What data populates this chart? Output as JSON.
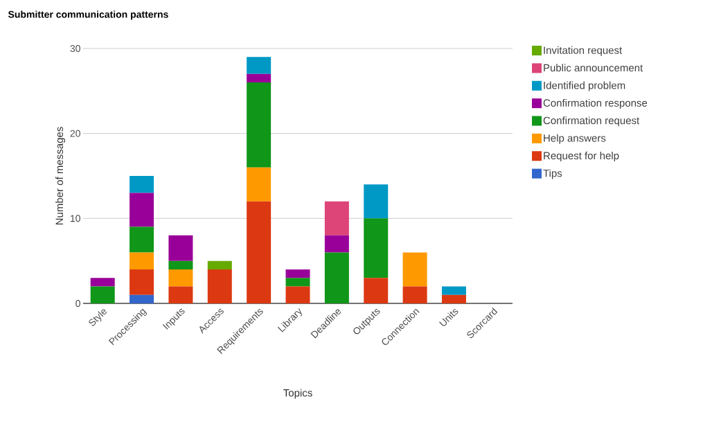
{
  "chart_data": {
    "type": "bar",
    "title": "Submitter communication patterns",
    "xlabel": "Topics",
    "ylabel": "Number of messages",
    "categories": [
      "Style",
      "Processing",
      "Inputs",
      "Access",
      "Requirements",
      "Library",
      "Deadline",
      "Outputs",
      "Connection",
      "Units",
      "Scorcard"
    ],
    "stacked": true,
    "ylim": [
      0,
      30
    ],
    "yticks": [
      0,
      10,
      20,
      30
    ],
    "grid": "y",
    "legend": "right",
    "series": [
      {
        "name": "Tips",
        "color": "#3366cc",
        "values": [
          0,
          1,
          0,
          0,
          0,
          0,
          0,
          0,
          0,
          0,
          0
        ]
      },
      {
        "name": "Request for help",
        "color": "#dc3912",
        "values": [
          0,
          3,
          2,
          4,
          12,
          2,
          0,
          3,
          2,
          1,
          0
        ]
      },
      {
        "name": "Help answers",
        "color": "#ff9900",
        "values": [
          0,
          2,
          2,
          0,
          4,
          0,
          0,
          0,
          4,
          0,
          0
        ]
      },
      {
        "name": "Confirmation request",
        "color": "#109618",
        "values": [
          2,
          3,
          1,
          0,
          10,
          1,
          6,
          7,
          0,
          0,
          0
        ]
      },
      {
        "name": "Confirmation response",
        "color": "#990099",
        "values": [
          1,
          4,
          3,
          0,
          1,
          1,
          2,
          0,
          0,
          0,
          0
        ]
      },
      {
        "name": "Identified problem",
        "color": "#0099c6",
        "values": [
          0,
          2,
          0,
          0,
          2,
          0,
          0,
          4,
          0,
          1,
          0
        ]
      },
      {
        "name": "Public announcement",
        "color": "#dd4477",
        "values": [
          0,
          0,
          0,
          0,
          0,
          0,
          4,
          0,
          0,
          0,
          0
        ]
      },
      {
        "name": "Invitation request",
        "color": "#66aa00",
        "values": [
          0,
          0,
          0,
          1,
          0,
          0,
          0,
          0,
          0,
          0,
          0
        ]
      }
    ]
  }
}
